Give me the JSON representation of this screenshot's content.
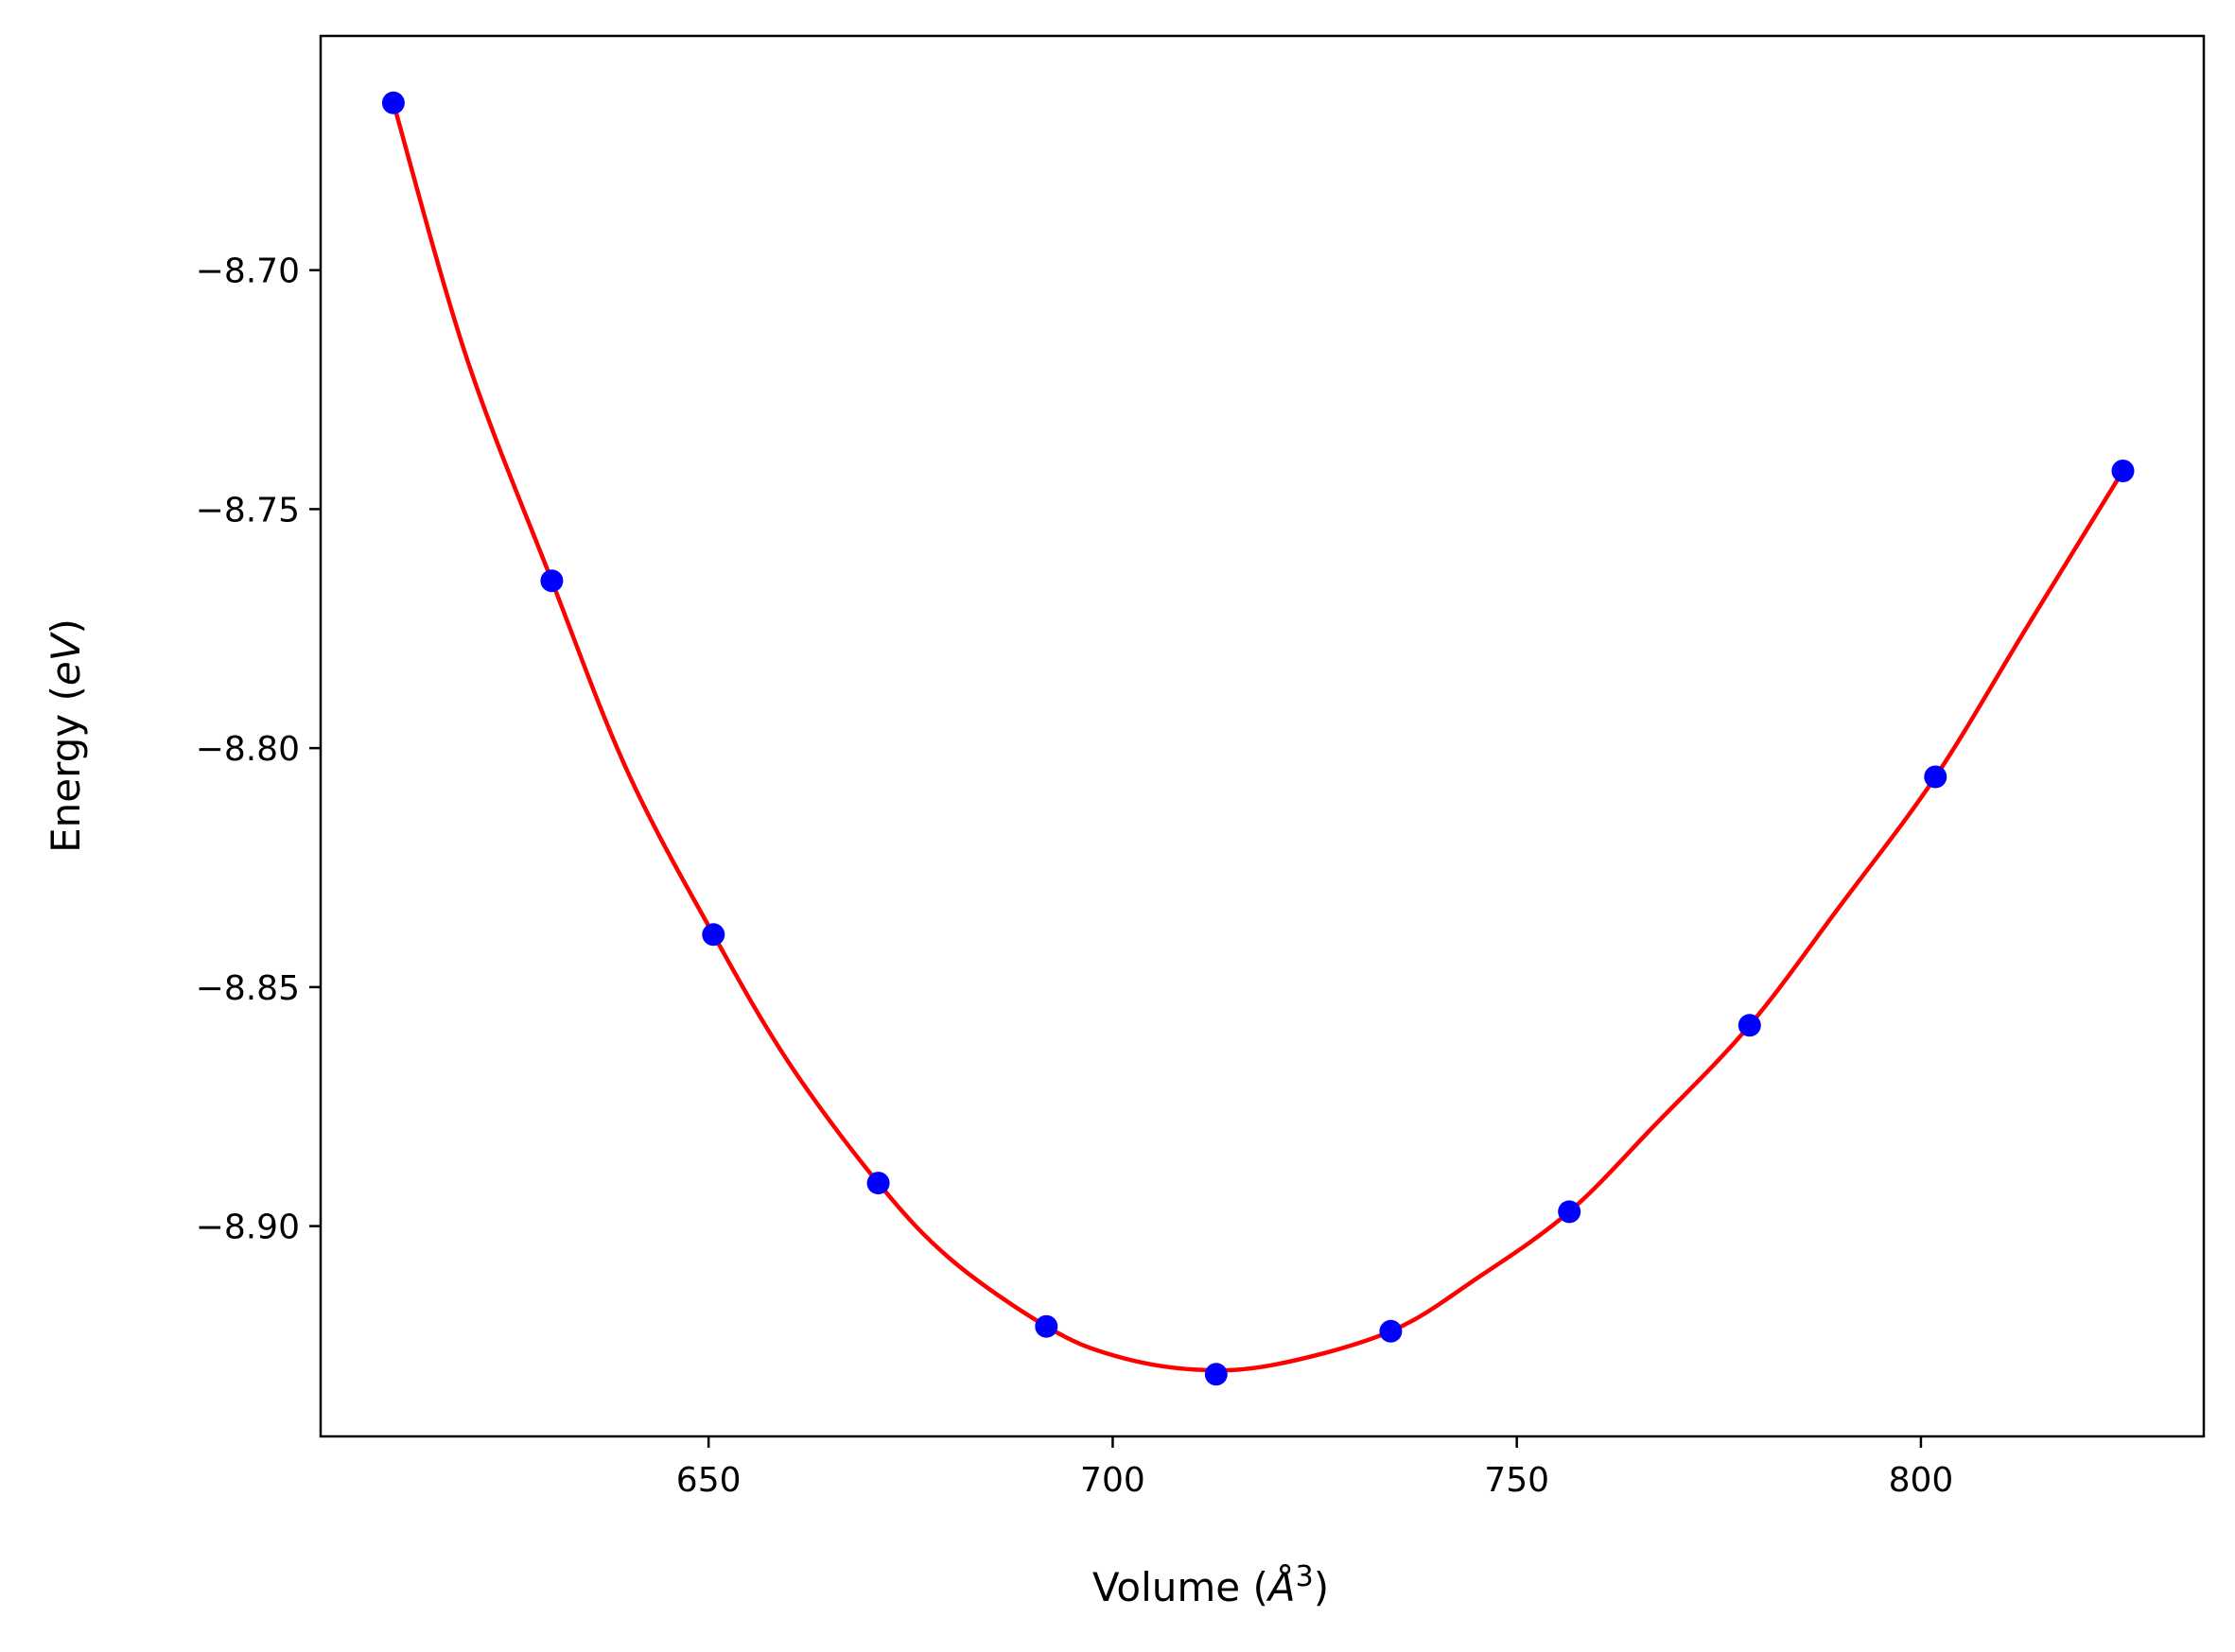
{
  "chart_data": {
    "type": "scatter",
    "xlabel": {
      "prefix": "Volume (",
      "italic": "Å",
      "sup": "3",
      "suffix": ")"
    },
    "ylabel": {
      "prefix": "Energy (",
      "italic": "eV",
      "suffix": ")"
    },
    "xlim": [
      602,
      835
    ],
    "ylim": [
      -8.944,
      -8.651
    ],
    "xticks": [
      650,
      700,
      750,
      800
    ],
    "xtick_labels": [
      "650",
      "700",
      "750",
      "800"
    ],
    "yticks": [
      -8.7,
      -8.75,
      -8.8,
      -8.85,
      -8.9
    ],
    "ytick_labels": [
      "−8.70",
      "−8.75",
      "−8.80",
      "−8.85",
      "−8.90"
    ],
    "grid": false,
    "legend": "none",
    "series": [
      {
        "kind": "points",
        "color": "#0000ff",
        "x": [
          611.0,
          630.6,
          650.6,
          671.0,
          691.8,
          712.8,
          734.4,
          756.5,
          778.8,
          801.8,
          825.0
        ],
        "y": [
          -8.665,
          -8.765,
          -8.839,
          -8.891,
          -8.921,
          -8.931,
          -8.922,
          -8.897,
          -8.858,
          -8.806,
          -8.742
        ]
      },
      {
        "kind": "fit-curve",
        "color": "#ff0000",
        "x": [
          611.0,
          620.0,
          630.6,
          640.0,
          650.6,
          660.0,
          671.0,
          680.0,
          691.8,
          700.0,
          710.0,
          720.0,
          734.4,
          745.0,
          756.5,
          767.0,
          778.8,
          790.0,
          801.8,
          813.0,
          825.0
        ],
        "y": [
          -8.665,
          -8.718,
          -8.765,
          -8.805,
          -8.839,
          -8.866,
          -8.891,
          -8.907,
          -8.921,
          -8.927,
          -8.93,
          -8.929,
          -8.922,
          -8.911,
          -8.897,
          -8.879,
          -8.858,
          -8.833,
          -8.806,
          -8.775,
          -8.742
        ]
      }
    ]
  }
}
